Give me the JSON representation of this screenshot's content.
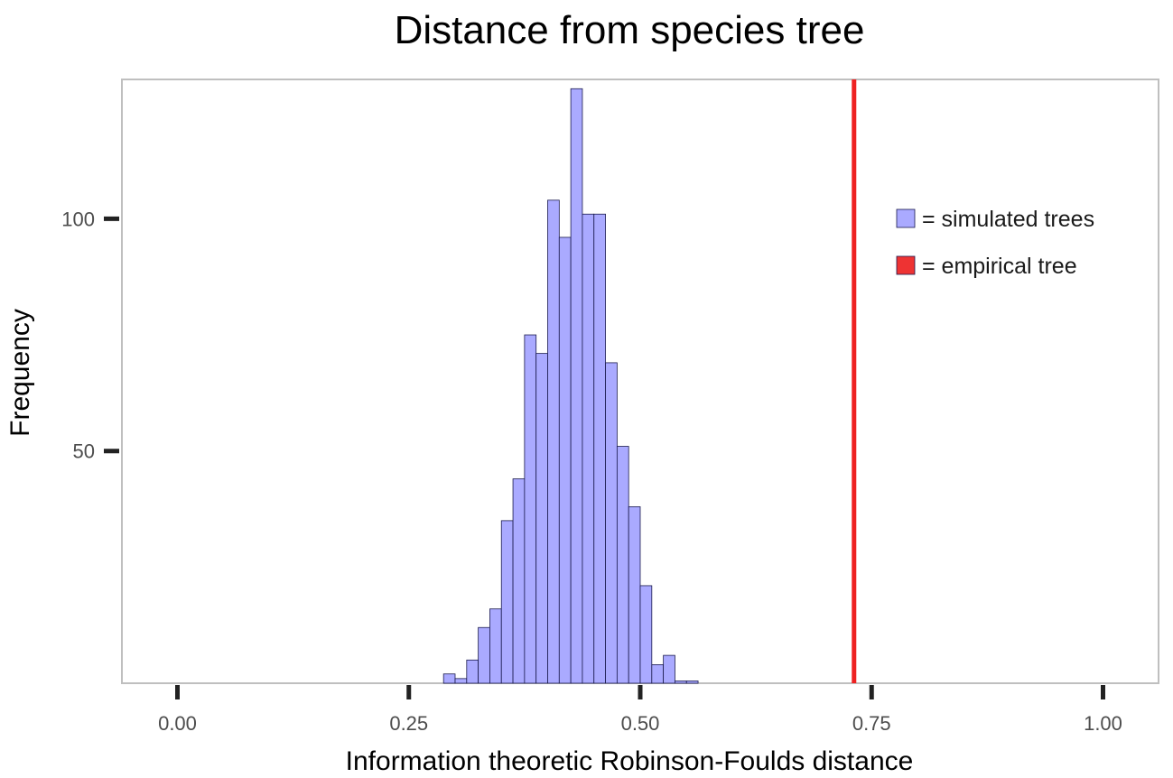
{
  "chart_data": {
    "type": "bar",
    "title": "Distance from species tree",
    "xlabel": "Information theoretic Robinson-Foulds distance",
    "ylabel": "Frequency",
    "xlim": [
      -0.06,
      1.06
    ],
    "ylim": [
      0,
      130
    ],
    "x_ticks": [
      {
        "value": 0.0,
        "label": "0.00"
      },
      {
        "value": 0.25,
        "label": "0.25"
      },
      {
        "value": 0.5,
        "label": "0.50"
      },
      {
        "value": 0.75,
        "label": "0.75"
      },
      {
        "value": 1.0,
        "label": "1.00"
      }
    ],
    "y_ticks": [
      {
        "value": 50,
        "label": "50"
      },
      {
        "value": 100,
        "label": "100"
      }
    ],
    "histogram": {
      "name": "simulated trees",
      "bin_width": 0.0125,
      "fill": "#aaaaff",
      "stroke": "#1a1a4d",
      "bins": [
        {
          "x": 0.2875,
          "count": 2
        },
        {
          "x": 0.3,
          "count": 1
        },
        {
          "x": 0.3125,
          "count": 5
        },
        {
          "x": 0.325,
          "count": 12
        },
        {
          "x": 0.3375,
          "count": 16
        },
        {
          "x": 0.35,
          "count": 35
        },
        {
          "x": 0.3625,
          "count": 44
        },
        {
          "x": 0.375,
          "count": 75
        },
        {
          "x": 0.3875,
          "count": 71
        },
        {
          "x": 0.4,
          "count": 104
        },
        {
          "x": 0.4125,
          "count": 96
        },
        {
          "x": 0.425,
          "count": 128
        },
        {
          "x": 0.4375,
          "count": 101
        },
        {
          "x": 0.45,
          "count": 101
        },
        {
          "x": 0.4625,
          "count": 69
        },
        {
          "x": 0.475,
          "count": 51
        },
        {
          "x": 0.4875,
          "count": 38
        },
        {
          "x": 0.5,
          "count": 21
        },
        {
          "x": 0.5125,
          "count": 4
        },
        {
          "x": 0.525,
          "count": 6
        },
        {
          "x": 0.5375,
          "count": 0.5
        },
        {
          "x": 0.55,
          "count": 0.5
        }
      ]
    },
    "reference_line": {
      "name": "empirical tree",
      "x": 0.731,
      "color": "#ee2222"
    },
    "legend": {
      "position": "right",
      "entries": [
        {
          "label": "= simulated trees",
          "color": "#aaaaff"
        },
        {
          "label": "= empirical tree",
          "color": "#ee3333"
        }
      ]
    },
    "grid": true,
    "panel_border_color": "#bfbfbf"
  }
}
